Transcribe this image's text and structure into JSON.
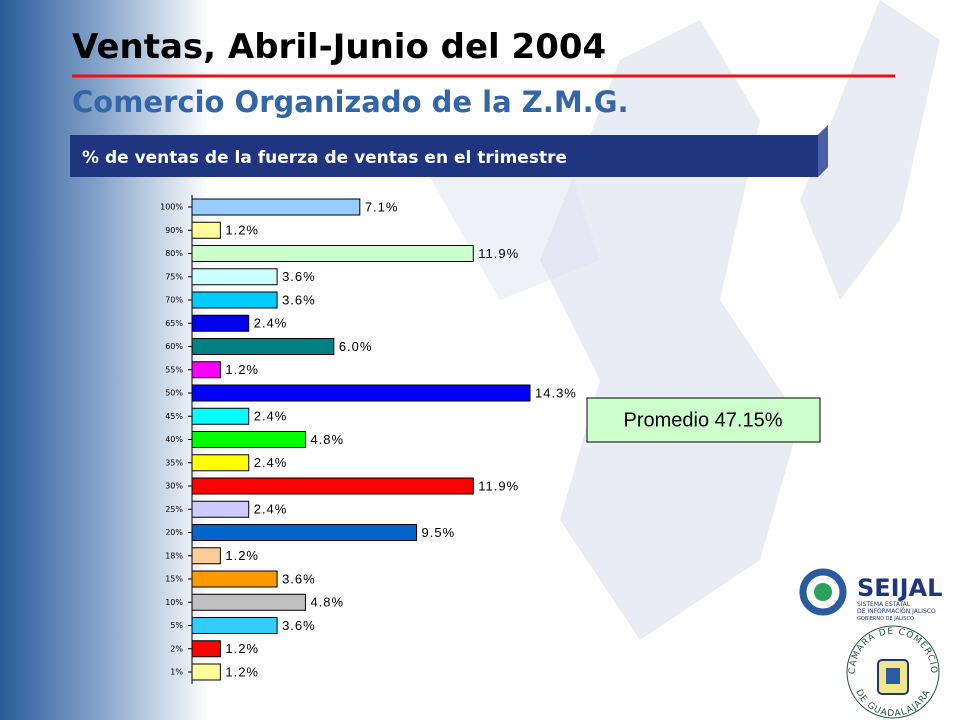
{
  "title": "Ventas, Abril-Junio del 2004",
  "subtitle": "Comercio Organizado de la Z.M.G.",
  "banner": "% de ventas de la fuerza de ventas en el trimestre",
  "logos": {
    "seijal": {
      "name": "SEIJAL",
      "lines": [
        "SISTEMA ESTATAL",
        "DE INFORMACIÓN JALISCO",
        "GOBIERNO DE JALISCO"
      ]
    },
    "camara": {
      "top": "CAMARA DE COMERCIO",
      "bottom": "DE GUADALAJARA"
    }
  },
  "chart_data": {
    "type": "hbar",
    "categories": [
      "100%",
      "90%",
      "80%",
      "75%",
      "70%",
      "65%",
      "60%",
      "55%",
      "50%",
      "45%",
      "40%",
      "35%",
      "30%",
      "25%",
      "20%",
      "18%",
      "15%",
      "10%",
      "5%",
      "2%",
      "1%"
    ],
    "values": [
      7.1,
      1.2,
      11.9,
      3.6,
      3.6,
      2.4,
      6.0,
      1.2,
      14.3,
      2.4,
      4.8,
      2.4,
      11.9,
      2.4,
      9.5,
      1.2,
      3.6,
      4.8,
      3.6,
      1.2,
      1.2
    ],
    "value_labels": [
      "7.1%",
      "1.2%",
      "11.9%",
      "3.6%",
      "3.6%",
      "2.4%",
      "6.0%",
      "1.2%",
      "14.3%",
      "2.4%",
      "4.8%",
      "2.4%",
      "11.9%",
      "2.4%",
      "9.5%",
      "1.2%",
      "3.6%",
      "4.8%",
      "3.6%",
      "1.2%",
      "1.2%"
    ],
    "colors": [
      "#99ccff",
      "#ffff99",
      "#ccffcc",
      "#ccffff",
      "#00ccff",
      "#0000ee",
      "#008080",
      "#ff00ff",
      "#0000ff",
      "#00ffff",
      "#00ff00",
      "#ffff00",
      "#ff0000",
      "#ccccff",
      "#0066cc",
      "#ffcc99",
      "#ff9900",
      "#c0c0c0",
      "#33ccff",
      "#ff0000",
      "#ffff99"
    ],
    "annotation": "Promedio 47.15%"
  }
}
